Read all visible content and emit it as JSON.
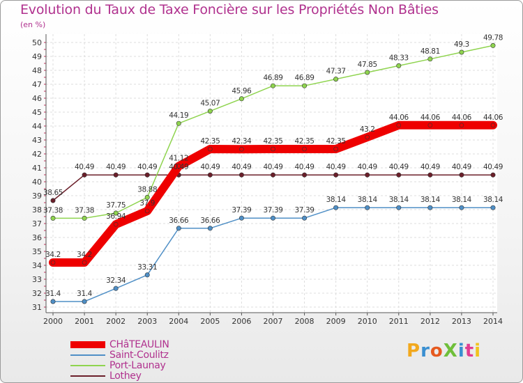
{
  "title": "Evolution du Taux de Taxe Foncière sur les Propriétés Non Bâties",
  "unit_label": "(en %)",
  "logo": {
    "text": "ProXiti",
    "colors": [
      "#f2a81d",
      "#3a8fd1",
      "#e65a1f",
      "#6fbf3a",
      "#3a8fd1",
      "#e23d91",
      "#f2c21d"
    ]
  },
  "chart_data": {
    "type": "line",
    "title": "Evolution du Taux de Taxe Foncière sur les Propriétés Non Bâties",
    "ylabel": "(en %)",
    "xlabel": "",
    "x": [
      "2000",
      "2001",
      "2002",
      "2003",
      "2004",
      "2005",
      "2006",
      "2007",
      "2008",
      "2009",
      "2010",
      "2011",
      "2012",
      "2013",
      "2014"
    ],
    "ylim": [
      31,
      50
    ],
    "yticks": [
      31,
      32,
      33,
      34,
      35,
      36,
      37,
      38,
      39,
      40,
      41,
      42,
      43,
      44,
      45,
      46,
      47,
      48,
      49,
      50
    ],
    "grid": true,
    "legend_position": "bottom-left",
    "series": [
      {
        "name": "Lothey",
        "color": "#6b1f2a",
        "values": [
          38.65,
          40.49,
          40.49,
          40.49,
          40.49,
          40.49,
          40.49,
          40.49,
          40.49,
          40.49,
          40.49,
          40.49,
          40.49,
          40.49,
          40.49
        ],
        "labels": [
          "38.65",
          "40.49",
          "40.49",
          "40.49",
          "40.49",
          "40.49",
          "40.49",
          "40.49",
          "40.49",
          "40.49",
          "40.49",
          "40.49",
          "40.49",
          "40.49",
          "40.49"
        ]
      },
      {
        "name": "Saint-Coulitz",
        "color": "#4f8fc6",
        "values": [
          31.4,
          31.4,
          32.34,
          33.31,
          36.66,
          36.66,
          37.39,
          37.39,
          37.39,
          38.14,
          38.14,
          38.14,
          38.14,
          38.14,
          38.14
        ],
        "labels": [
          "31.4",
          "31.4",
          "32.34",
          "33.31",
          "36.66",
          "36.66",
          "37.39",
          "37.39",
          "37.39",
          "38.14",
          "38.14",
          "38.14",
          "38.14",
          "38.14",
          "38.14"
        ]
      },
      {
        "name": "Port-Launay",
        "color": "#8fd44f",
        "values": [
          37.38,
          37.38,
          37.75,
          38.88,
          44.19,
          45.07,
          45.96,
          46.89,
          46.89,
          47.37,
          47.85,
          48.33,
          48.81,
          49.3,
          49.78
        ],
        "labels": [
          "37.38",
          "37.38",
          "37.75",
          "38.88",
          "44.19",
          "45.07",
          "45.96",
          "46.89",
          "46.89",
          "47.37",
          "47.85",
          "48.33",
          "48.81",
          "49.3",
          "49.78"
        ]
      },
      {
        "name": "CHâTEAULIN",
        "color": "#ee0000",
        "values": [
          34.2,
          34.2,
          36.94,
          37.9,
          41.12,
          42.35,
          42.34,
          42.35,
          42.35,
          42.35,
          43.2,
          44.06,
          44.06,
          44.06,
          44.06
        ],
        "labels": [
          "34.2",
          "34.2",
          "36.94",
          "37.9",
          "41.12",
          "42.35",
          "42.34",
          "42.35",
          "42.35",
          "42.35",
          "43.2",
          "44.06",
          "44.06",
          "44.06",
          "44.06"
        ]
      }
    ],
    "legend": [
      {
        "name": "CHâTEAULIN",
        "color": "#ee0000"
      },
      {
        "name": "Saint-Coulitz",
        "color": "#4f8fc6"
      },
      {
        "name": "Port-Launay",
        "color": "#8fd44f"
      },
      {
        "name": "Lothey",
        "color": "#6b1f2a"
      }
    ]
  }
}
